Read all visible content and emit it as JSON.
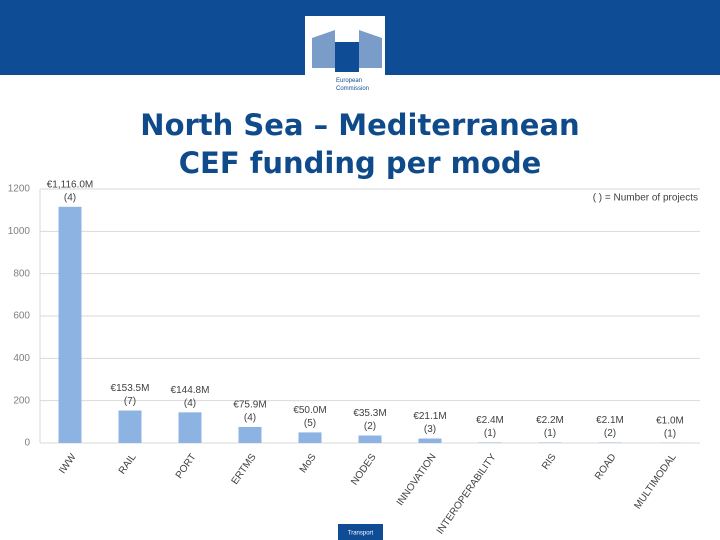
{
  "logo": [
    "European",
    "Commission"
  ],
  "footer": "Transport",
  "chart_data": {
    "type": "bar",
    "title": "North Sea – Mediterranean CEF funding per mode",
    "note": "( ) = Number of projects",
    "categories": [
      "IWW",
      "RAIL",
      "PORT",
      "ERTMS",
      "MoS",
      "NODES",
      "INNOVATION",
      "INTEROPERABILITY",
      "RIS",
      "ROAD",
      "MULTIMODAL"
    ],
    "values": [
      1116.0,
      153.5,
      144.8,
      75.9,
      50.0,
      35.3,
      21.1,
      2.4,
      2.2,
      2.1,
      1.0
    ],
    "value_labels": [
      "€1,116.0M",
      "€153.5M",
      "€144.8M",
      "€75.9M",
      "€50.0M",
      "€35.3M",
      "€21.1M",
      "€2.4M",
      "€2.2M",
      "€2.1M",
      "€1.0M"
    ],
    "project_labels": [
      "(4)",
      "(7)",
      "(4)",
      "(4)",
      "(5)",
      "(2)",
      "(3)",
      "(1)",
      "(1)",
      "(2)",
      "(1)"
    ],
    "color": "#8db3e2",
    "ylim": [
      0,
      1200
    ],
    "yticks": [
      0,
      200,
      400,
      600,
      800,
      1000,
      1200
    ],
    "grid": true
  }
}
